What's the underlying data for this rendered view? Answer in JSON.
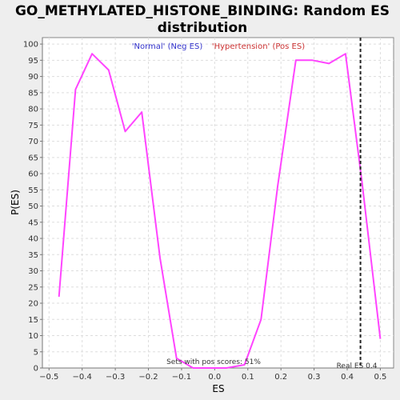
{
  "chart_data": {
    "type": "line",
    "title_line1": "GO_METHYLATED_HISTONE_BINDING: Random ES",
    "title_line2": "distribution",
    "xlabel": "ES",
    "ylabel": "P(ES)",
    "xlim": [
      -0.52,
      0.54
    ],
    "ylim": [
      0,
      102
    ],
    "xticks": [
      -0.5,
      -0.4,
      -0.3,
      -0.2,
      -0.1,
      0.0,
      0.1,
      0.2,
      0.3,
      0.4,
      0.5
    ],
    "xtick_labels": [
      "−0.5",
      "−0.4",
      "−0.3",
      "−0.2",
      "−0.1",
      "0.0",
      "0.1",
      "0.2",
      "0.3",
      "0.4",
      "0.5"
    ],
    "yticks": [
      0,
      5,
      10,
      15,
      20,
      25,
      30,
      35,
      40,
      45,
      50,
      55,
      60,
      65,
      70,
      75,
      80,
      85,
      90,
      95,
      100
    ],
    "grid": true,
    "legend": [
      {
        "label": "'Normal' (Neg ES)",
        "color": "#3333cc"
      },
      {
        "label": "'Hypertension' (Pos ES)",
        "color": "#cc3333"
      }
    ],
    "series": [
      {
        "color": "#ff44ff",
        "x": [
          -0.47,
          -0.42,
          -0.37,
          -0.32,
          -0.27,
          -0.22,
          -0.165,
          -0.115,
          -0.065,
          -0.015,
          0.035,
          0.09,
          0.14,
          0.19,
          0.245,
          0.295,
          0.345,
          0.395,
          0.445,
          0.5
        ],
        "y": [
          22,
          86,
          97,
          92,
          73,
          79,
          34,
          3,
          0,
          0,
          0,
          1,
          15,
          56,
          95,
          95,
          94,
          97,
          57,
          9
        ]
      }
    ],
    "real_es": {
      "x": 0.44,
      "label": "Real ES 0.4"
    },
    "annotation": "Sets with pos scores: 51%"
  }
}
